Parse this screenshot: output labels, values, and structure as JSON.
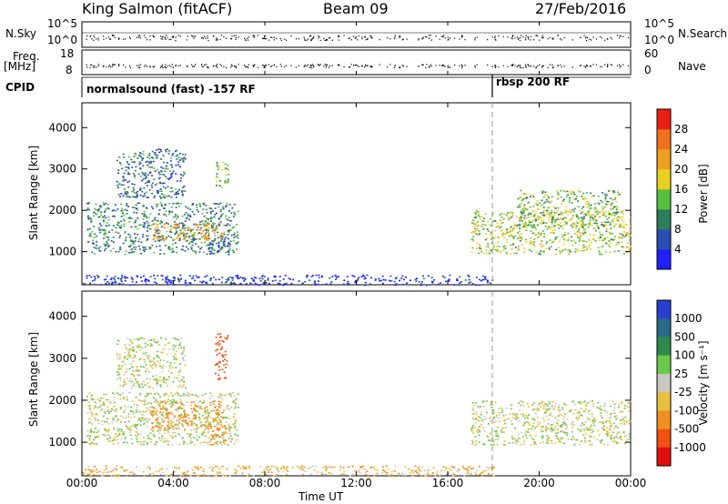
{
  "header": {
    "station": "King Salmon (fitACF)",
    "beam": "Beam 09",
    "date": "27/Feb/2016"
  },
  "status_panels": {
    "nsky_label": "N.Sky",
    "nsky_ticks": [
      "10^5",
      "10^0"
    ],
    "nsearch_label": "N.Search",
    "nsearch_ticks": [
      "10^5",
      "10^0"
    ],
    "freq_label": "Freq.",
    "freq_unit": "[MHz]",
    "freq_ticks": [
      "18",
      "8"
    ],
    "nave_label": "Nave",
    "nave_ticks": [
      "60",
      "0"
    ],
    "cpid_label": "CPID",
    "cpid_segments": [
      {
        "label": "normalsound (fast) -157 RF",
        "start_hour": 0
      },
      {
        "label": "rbsp 200 RF",
        "start_hour": 18
      }
    ]
  },
  "axes": {
    "xlabel": "Time UT",
    "x_ticks": [
      "00:00",
      "04:00",
      "08:00",
      "12:00",
      "16:00",
      "20:00",
      "00:00"
    ],
    "ylabel": "Slant Range [km]",
    "y_ticks": [
      "1000",
      "2000",
      "3000",
      "4000"
    ]
  },
  "power_colorbar": {
    "label": "Power [dB]",
    "ticks": [
      "4",
      "8",
      "12",
      "16",
      "20",
      "24",
      "28"
    ],
    "colors": [
      "#2020ff",
      "#2a4fb0",
      "#2e7d5a",
      "#55c040",
      "#e8d020",
      "#f0a020",
      "#f07020",
      "#e82010"
    ]
  },
  "velocity_colorbar": {
    "label": "Velocity [m s⁻¹]",
    "ticks": [
      "1000",
      "500",
      "100",
      "25",
      "-25",
      "-100",
      "-500",
      "-1000"
    ],
    "colors": [
      "#2a3fd0",
      "#2a6a8a",
      "#2e8a4a",
      "#6cc84a",
      "#c8c8c0",
      "#e8c040",
      "#f09020",
      "#f05010",
      "#e01010"
    ]
  },
  "chart_data": [
    {
      "type": "heatmap",
      "title": "",
      "xlabel": "",
      "ylabel": "Slant Range [km]",
      "xlim": [
        0,
        24
      ],
      "ylim": [
        200,
        4600
      ],
      "color_label": "Power [dB]",
      "clim": [
        0,
        30
      ],
      "regions": [
        {
          "t0": 0.2,
          "t1": 6.8,
          "r0": 950,
          "r1": 2200,
          "value": 10
        },
        {
          "t0": 3.0,
          "t1": 6.2,
          "r0": 1300,
          "r1": 1700,
          "value": 22
        },
        {
          "t0": 1.5,
          "t1": 4.5,
          "r0": 2300,
          "r1": 3500,
          "value": 8
        },
        {
          "t0": 5.5,
          "t1": 6.5,
          "r0": 950,
          "r1": 1350,
          "value": 6
        },
        {
          "t0": 5.8,
          "t1": 6.4,
          "r0": 2500,
          "r1": 3200,
          "value": 14
        },
        {
          "t0": 17.0,
          "t1": 24.0,
          "r0": 950,
          "r1": 2000,
          "value": 16
        },
        {
          "t0": 19.0,
          "t1": 23.5,
          "r0": 1600,
          "r1": 2500,
          "value": 14
        },
        {
          "t0": 0.0,
          "t1": 18.0,
          "r0": 200,
          "r1": 450,
          "value": 4
        }
      ]
    },
    {
      "type": "heatmap",
      "title": "",
      "xlabel": "Time UT",
      "ylabel": "Slant Range [km]",
      "xlim": [
        0,
        24
      ],
      "ylim": [
        200,
        4600
      ],
      "color_label": "Velocity [m s⁻¹]",
      "clim": [
        -1000,
        1000
      ],
      "regions": [
        {
          "t0": 0.2,
          "t1": 6.8,
          "r0": 950,
          "r1": 2200,
          "value": 0
        },
        {
          "t0": 3.0,
          "t1": 6.2,
          "r0": 1300,
          "r1": 2000,
          "value": -300
        },
        {
          "t0": 5.5,
          "t1": 6.5,
          "r0": 950,
          "r1": 1400,
          "value": -300
        },
        {
          "t0": 5.8,
          "t1": 6.4,
          "r0": 2500,
          "r1": 3600,
          "value": -700
        },
        {
          "t0": 1.5,
          "t1": 4.5,
          "r0": 2300,
          "r1": 3500,
          "value": 0
        },
        {
          "t0": 17.0,
          "t1": 24.0,
          "r0": 950,
          "r1": 2000,
          "value": 0
        },
        {
          "t0": 0.0,
          "t1": 18.0,
          "r0": 200,
          "r1": 450,
          "value": -80
        }
      ]
    }
  ]
}
